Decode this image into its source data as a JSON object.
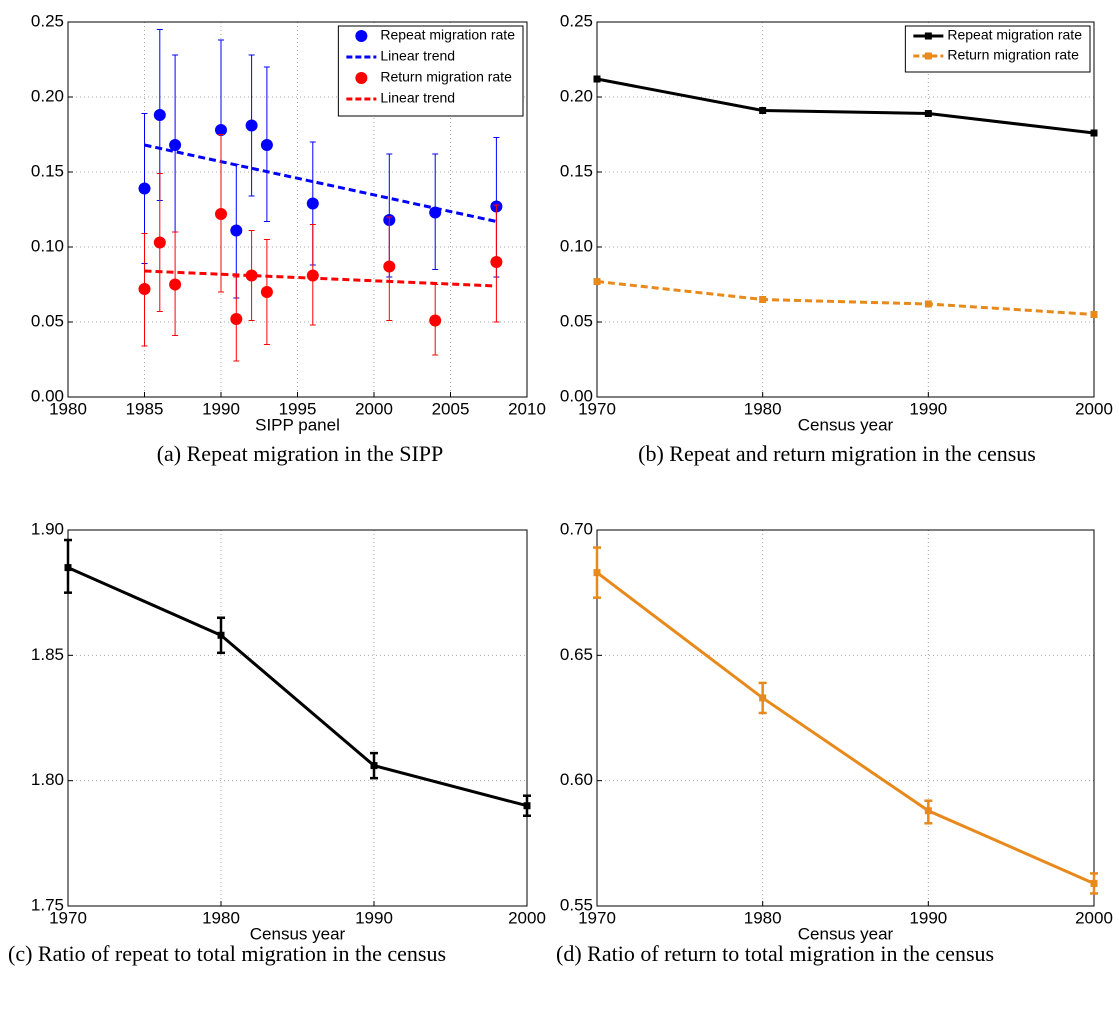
{
  "chart_data": [
    {
      "type": "scatter",
      "caption": "(a) Repeat migration in the SIPP",
      "xlabel": "SIPP panel",
      "x": [
        1985,
        1986,
        1987,
        1990,
        1991,
        1992,
        1993,
        1996,
        2001,
        2004,
        2008
      ],
      "xlim": [
        1980,
        2010
      ],
      "xticks": [
        1980,
        1985,
        1990,
        1995,
        2000,
        2005,
        2010
      ],
      "ylim": [
        0,
        0.25
      ],
      "yticks": [
        {
          "value": 0,
          "label": "0.00"
        },
        {
          "value": 0.05,
          "label": "0.05"
        },
        {
          "value": 0.1,
          "label": "0.10"
        },
        {
          "value": 0.15,
          "label": "0.15"
        },
        {
          "value": 0.2,
          "label": "0.20"
        },
        {
          "value": 0.25,
          "label": "0.25"
        }
      ],
      "grid": true,
      "legend": "northeast",
      "series": [
        {
          "name": "Repeat migration rate",
          "color": "#0000ff",
          "marker": "circle",
          "line_style": "none",
          "values": [
            0.139,
            0.188,
            0.168,
            0.178,
            0.111,
            0.181,
            0.168,
            0.129,
            0.118,
            0.123,
            0.127
          ],
          "upper": [
            0.189,
            0.245,
            0.228,
            0.238,
            0.155,
            0.228,
            0.22,
            0.17,
            0.162,
            0.162,
            0.173
          ],
          "lower": [
            0.089,
            0.131,
            0.11,
            0.12,
            0.066,
            0.134,
            0.117,
            0.088,
            0.08,
            0.085,
            0.08
          ]
        },
        {
          "name": "Linear trend",
          "color": "#0000ff",
          "marker": "none",
          "line_style": "dashed",
          "x": [
            1985,
            2008
          ],
          "values": [
            0.168,
            0.117
          ]
        },
        {
          "name": "Return migration rate",
          "color": "#ff0000",
          "marker": "circle",
          "line_style": "none",
          "values": [
            0.072,
            0.103,
            0.075,
            0.122,
            0.052,
            0.081,
            0.07,
            0.081,
            0.087,
            0.051,
            0.09
          ],
          "upper": [
            0.109,
            0.149,
            0.11,
            0.175,
            0.08,
            0.111,
            0.105,
            0.115,
            0.12,
            0.075,
            0.128
          ],
          "lower": [
            0.034,
            0.057,
            0.041,
            0.07,
            0.024,
            0.051,
            0.035,
            0.048,
            0.051,
            0.028,
            0.05
          ]
        },
        {
          "name": "Linear trend",
          "color": "#ff0000",
          "marker": "none",
          "line_style": "dashed",
          "x": [
            1985,
            2008
          ],
          "values": [
            0.084,
            0.074
          ]
        }
      ]
    },
    {
      "type": "line",
      "caption": "(b) Repeat and return migration in the census",
      "xlabel": "Census year",
      "x": [
        1970,
        1980,
        1990,
        2000
      ],
      "xlim": [
        1970,
        2000
      ],
      "xticks": [
        1970,
        1980,
        1990,
        2000
      ],
      "ylim": [
        0,
        0.25
      ],
      "yticks": [
        {
          "value": 0,
          "label": "0.00"
        },
        {
          "value": 0.05,
          "label": "0.05"
        },
        {
          "value": 0.1,
          "label": "0.10"
        },
        {
          "value": 0.15,
          "label": "0.15"
        },
        {
          "value": 0.2,
          "label": "0.20"
        },
        {
          "value": 0.25,
          "label": "0.25"
        }
      ],
      "grid": true,
      "legend": "northeast",
      "series": [
        {
          "name": "Repeat migration rate",
          "color": "#000000",
          "marker": "square",
          "line_style": "solid",
          "values": [
            0.212,
            0.191,
            0.189,
            0.176
          ]
        },
        {
          "name": "Return migration rate",
          "color": "#e8891c",
          "marker": "square",
          "line_style": "dashed",
          "values": [
            0.077,
            0.065,
            0.062,
            0.055
          ]
        }
      ]
    },
    {
      "type": "line",
      "caption": "(c) Ratio of repeat to total migration in the census",
      "xlabel": "Census year",
      "x": [
        1970,
        1980,
        1990,
        2000
      ],
      "xlim": [
        1970,
        2000
      ],
      "xticks": [
        1970,
        1980,
        1990,
        2000
      ],
      "ylim": [
        1.75,
        1.9
      ],
      "yticks": [
        {
          "value": 1.75,
          "label": "1.75"
        },
        {
          "value": 1.8,
          "label": "1.80"
        },
        {
          "value": 1.85,
          "label": "1.85"
        },
        {
          "value": 1.9,
          "label": "1.90"
        }
      ],
      "grid": true,
      "series": [
        {
          "color": "#000000",
          "marker": "square",
          "line_style": "solid",
          "values": [
            1.885,
            1.858,
            1.806,
            1.79
          ],
          "upper": [
            1.896,
            1.865,
            1.811,
            1.794
          ],
          "lower": [
            1.875,
            1.851,
            1.801,
            1.786
          ]
        }
      ]
    },
    {
      "type": "line",
      "caption": "(d) Ratio of return to total migration in the census",
      "xlabel": "Census year",
      "x": [
        1970,
        1980,
        1990,
        2000
      ],
      "xlim": [
        1970,
        2000
      ],
      "xticks": [
        1970,
        1980,
        1990,
        2000
      ],
      "ylim": [
        0.55,
        0.7
      ],
      "yticks": [
        {
          "value": 0.55,
          "label": "0.55"
        },
        {
          "value": 0.6,
          "label": "0.60"
        },
        {
          "value": 0.65,
          "label": "0.65"
        },
        {
          "value": 0.7,
          "label": "0.70"
        }
      ],
      "grid": true,
      "series": [
        {
          "color": "#e8891c",
          "marker": "square",
          "line_style": "solid",
          "values": [
            0.683,
            0.633,
            0.588,
            0.559
          ],
          "upper": [
            0.693,
            0.639,
            0.592,
            0.563
          ],
          "lower": [
            0.673,
            0.627,
            0.583,
            0.555
          ]
        }
      ]
    }
  ]
}
